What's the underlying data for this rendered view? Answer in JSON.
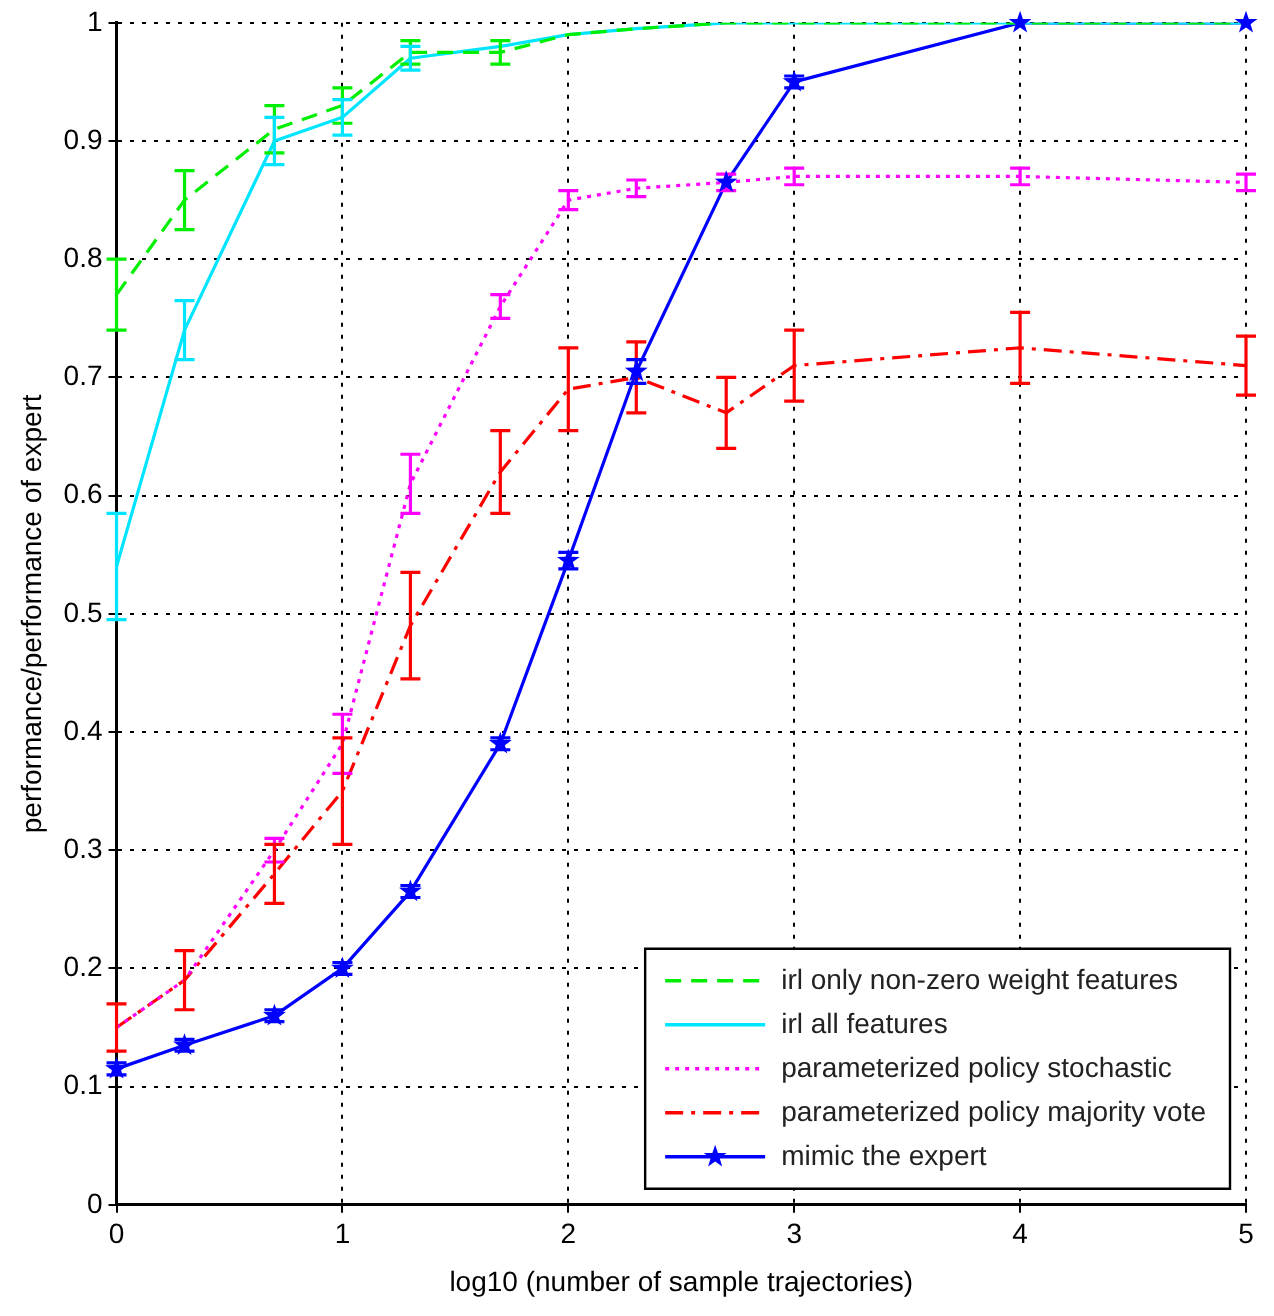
{
  "chart_data": {
    "type": "line",
    "xlabel": "log10 (number of sample trajectories)",
    "ylabel": "performance/performance of expert",
    "xlim": [
      0,
      5
    ],
    "xticks": [
      0,
      1,
      2,
      3,
      4,
      5
    ],
    "ylim": [
      0,
      1
    ],
    "yticks": [
      0,
      0.1,
      0.2,
      0.3,
      0.4,
      0.5,
      0.6,
      0.7,
      0.8,
      0.9,
      1
    ],
    "grid": true,
    "legend": "bottom right",
    "x": [
      0,
      0.301,
      0.699,
      1,
      1.301,
      1.699,
      2,
      2.301,
      2.699,
      3,
      4,
      5
    ],
    "series": [
      {
        "name": "irl only non-zero weight features",
        "color": "#00ee00",
        "line_style": "dashed",
        "marker": "none",
        "values": [
          0.77,
          0.85,
          0.91,
          0.93,
          0.975,
          0.975,
          0.99,
          0.995,
          1,
          1,
          1,
          1
        ],
        "errors": [
          0.03,
          0.025,
          0.02,
          0.015,
          0.01,
          0.01,
          null,
          null,
          null,
          null,
          null,
          null
        ]
      },
      {
        "name": "irl all features",
        "color": "#00e5ff",
        "line_style": "solid",
        "marker": "none",
        "values": [
          0.54,
          0.74,
          0.9,
          0.92,
          0.97,
          0.98,
          0.99,
          0.995,
          1,
          1,
          1,
          1
        ],
        "errors": [
          0.045,
          0.025,
          0.02,
          0.015,
          0.01,
          null,
          null,
          null,
          null,
          null,
          null,
          null
        ]
      },
      {
        "name": "parameterized policy stochastic",
        "color": "#ff00ff",
        "line_style": "dotted",
        "values": [
          0.15,
          0.19,
          0.3,
          0.39,
          0.61,
          0.76,
          0.85,
          0.86,
          0.865,
          0.87,
          0.87,
          0.865
        ],
        "errors": [
          null,
          null,
          0.01,
          0.025,
          0.025,
          0.01,
          0.008,
          0.007,
          0.007,
          0.007,
          0.007,
          0.007
        ]
      },
      {
        "name": "parameterized policy majority vote",
        "color": "#ff0000",
        "line_style": "dashdot",
        "marker": "none",
        "values": [
          0.15,
          0.19,
          0.28,
          0.35,
          0.49,
          0.62,
          0.69,
          0.7,
          0.67,
          0.71,
          0.725,
          0.71
        ],
        "errors": [
          0.02,
          0.025,
          0.025,
          0.045,
          0.045,
          0.035,
          0.035,
          0.03,
          0.03,
          0.03,
          0.03,
          0.025
        ]
      },
      {
        "name": "mimic the expert",
        "color": "#0000ff",
        "line_style": "solid",
        "marker": "star",
        "values": [
          0.115,
          0.135,
          0.16,
          0.2,
          0.265,
          0.39,
          0.545,
          0.705,
          0.865,
          0.95,
          1,
          1
        ],
        "errors": [
          0.005,
          0.005,
          0.005,
          0.005,
          0.005,
          0.005,
          0.007,
          0.01,
          null,
          0.005,
          null,
          null
        ]
      }
    ]
  }
}
